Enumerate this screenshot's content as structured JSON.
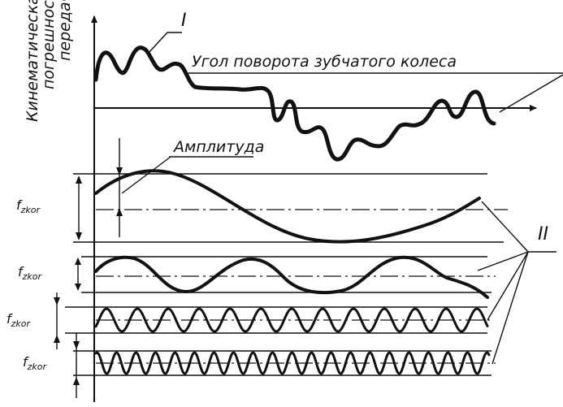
{
  "labels": {
    "ylabel_line1": "Кинематическая",
    "ylabel_line2": "погрешность",
    "ylabel_line3": "передачи",
    "angle_label": "Угол поворота зубчатого колеса",
    "amplitude_label": "Амплитуда",
    "curve_marker_1": "I",
    "curve_marker_2": "II",
    "f_labels": [
      "f",
      "f",
      "f",
      "f"
    ],
    "f_subscripts": [
      "zkor",
      "zkor",
      "zkor",
      "zkor"
    ]
  }
}
